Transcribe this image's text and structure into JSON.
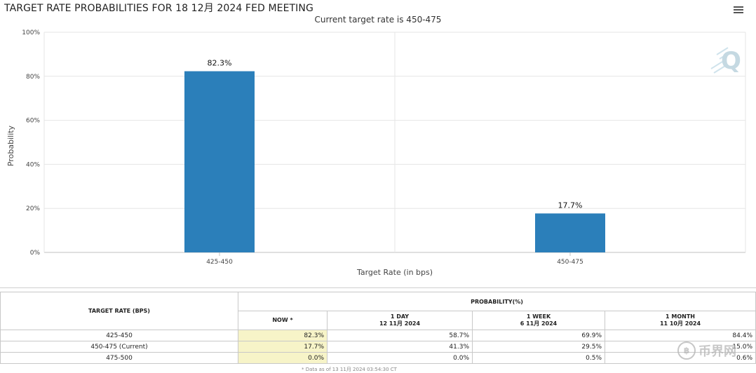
{
  "chart_data": {
    "type": "bar",
    "title": "TARGET RATE PROBABILITIES FOR 18 12月 2024 FED MEETING",
    "subtitle": "Current target rate is 450-475",
    "xlabel": "Target Rate (in bps)",
    "ylabel": "Probability",
    "categories": [
      "425-450",
      "450-475"
    ],
    "values": [
      82.3,
      17.7
    ],
    "data_labels": [
      "82.3%",
      "17.7%"
    ],
    "ylim": [
      0,
      100
    ],
    "yticks": [
      0,
      20,
      40,
      60,
      80,
      100
    ],
    "ytick_labels": [
      "0%",
      "20%",
      "40%",
      "60%",
      "80%",
      "100%"
    ],
    "bar_color": "#2b7fba",
    "grid": true,
    "legend": "none"
  },
  "icons": {
    "menu": "hamburger-menu-icon",
    "watermark": "q-logo-icon",
    "site_logo": "bitcoin-circle-icon"
  },
  "table": {
    "col_target_header": "TARGET RATE (BPS)",
    "col_prob_header": "PROBABILITY(%)",
    "sub_headers": [
      {
        "line1": "NOW *",
        "line2": ""
      },
      {
        "line1": "1 DAY",
        "line2": "12 11月 2024"
      },
      {
        "line1": "1 WEEK",
        "line2": "6 11月 2024"
      },
      {
        "line1": "1 MONTH",
        "line2": "11 10月 2024"
      }
    ],
    "rows": [
      {
        "rate": "425-450",
        "now": "82.3%",
        "day": "58.7%",
        "week": "69.9%",
        "month": "84.4%"
      },
      {
        "rate": "450-475 (Current)",
        "now": "17.7%",
        "day": "41.3%",
        "week": "29.5%",
        "month": "15.0%"
      },
      {
        "rate": "475-500",
        "now": "0.0%",
        "day": "0.0%",
        "week": "0.5%",
        "month": "0.6%"
      }
    ]
  },
  "footer_note": "* Data as of 13 11月 2024 03:54:30 CT",
  "site_logo_text": "币界网",
  "site_logo_glyph": "฿"
}
